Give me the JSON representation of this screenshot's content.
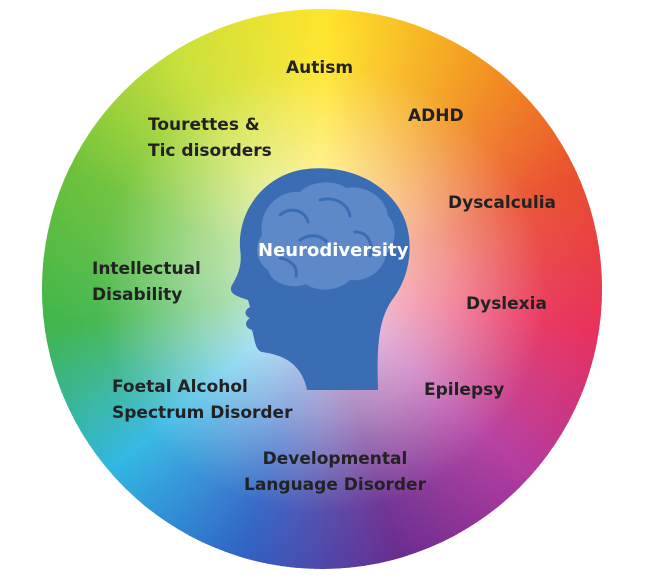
{
  "center": {
    "label": "Neurodiversity"
  },
  "conditions": [
    {
      "line1": "Autism"
    },
    {
      "line1": "ADHD"
    },
    {
      "line1": "Dyscalculia"
    },
    {
      "line1": "Dyslexia"
    },
    {
      "line1": "Epilepsy"
    },
    {
      "line1": "Developmental",
      "line2": "Language Disorder"
    },
    {
      "line1": "Foetal Alcohol",
      "line2": "Spectrum Disorder"
    },
    {
      "line1": "Intellectual",
      "line2": "Disability"
    },
    {
      "line1": "Tourettes &",
      "line2": "Tic disorders"
    }
  ],
  "colors": {
    "wheel": [
      "#ffe52a",
      "#f39c1f",
      "#e94f2d",
      "#e8305c",
      "#b43a9e",
      "#6a2c8f",
      "#2f63c5",
      "#31b6e3",
      "#3fb54a",
      "#6cc13a",
      "#c9e03a"
    ],
    "head": "#3b6db5",
    "brain": "#5d89c9"
  }
}
